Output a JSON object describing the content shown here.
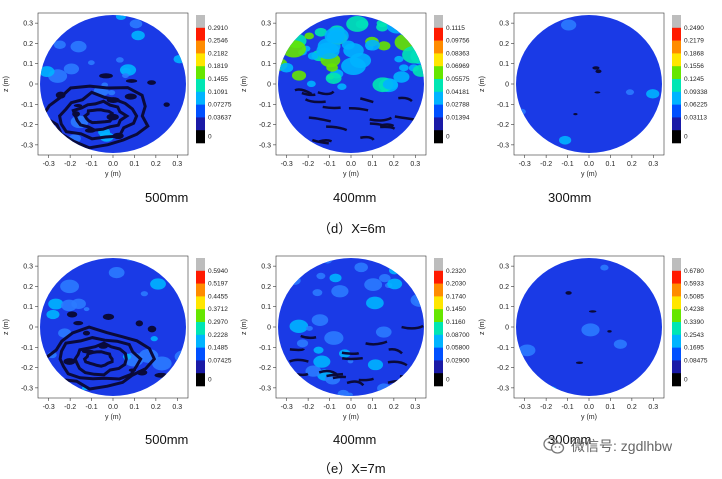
{
  "chart_data": [
    {
      "type": "heatmap",
      "label": "500mm",
      "xlabel": "y (m)",
      "ylabel": "z (m)",
      "xlim": [
        -0.35,
        0.35
      ],
      "ylim": [
        -0.35,
        0.35
      ],
      "xticks": [
        "-0.3",
        "-0.2",
        "-0.1",
        "0.0",
        "0.1",
        "0.2",
        "0.3"
      ],
      "yticks": [
        "0.3",
        "0.2",
        "0.1",
        "0",
        "-0.1",
        "-0.2",
        "-0.3"
      ],
      "colorbar": [
        "0.2910",
        "0.2546",
        "0.2182",
        "0.1819",
        "0.1455",
        "0.1091",
        "0.07275",
        "0.03637",
        "0"
      ],
      "style": "low-dark-contours"
    },
    {
      "type": "heatmap",
      "label": "400mm",
      "xlabel": "y (m)",
      "ylabel": "z (m)",
      "xlim": [
        -0.35,
        0.35
      ],
      "ylim": [
        -0.35,
        0.35
      ],
      "xticks": [
        "-0.3",
        "-0.2",
        "-0.1",
        "0.0",
        "0.1",
        "0.2",
        "0.3"
      ],
      "yticks": [
        "0.3",
        "0.2",
        "0.1",
        "0",
        "-0.1",
        "-0.2",
        "-0.3"
      ],
      "colorbar": [
        "0.1115",
        "0.09756",
        "0.08363",
        "0.06969",
        "0.05575",
        "0.04181",
        "0.02788",
        "0.01394",
        "0"
      ],
      "style": "speckled-top"
    },
    {
      "type": "heatmap",
      "label": "300mm",
      "xlabel": "y (m)",
      "ylabel": "z (m)",
      "xlim": [
        -0.35,
        0.35
      ],
      "ylim": [
        -0.35,
        0.35
      ],
      "xticks": [
        "-0.3",
        "-0.2",
        "-0.1",
        "0.0",
        "0.1",
        "0.2",
        "0.3"
      ],
      "yticks": [
        "0.3",
        "0.2",
        "0.1",
        "0",
        "-0.1",
        "-0.2",
        "-0.3"
      ],
      "colorbar": [
        "0.2490",
        "0.2179",
        "0.1868",
        "0.1556",
        "0.1245",
        "0.09338",
        "0.06225",
        "0.03113",
        "0"
      ],
      "style": "mostly-blue"
    },
    {
      "type": "heatmap",
      "label": "500mm",
      "xlabel": "y (m)",
      "ylabel": "z (m)",
      "xlim": [
        -0.35,
        0.35
      ],
      "ylim": [
        -0.35,
        0.35
      ],
      "xticks": [
        "-0.3",
        "-0.2",
        "-0.1",
        "0.0",
        "0.1",
        "0.2",
        "0.3"
      ],
      "yticks": [
        "0.3",
        "0.2",
        "0.1",
        "0",
        "-0.1",
        "-0.2",
        "-0.3"
      ],
      "colorbar": [
        "0.5940",
        "0.5197",
        "0.4455",
        "0.3712",
        "0.2970",
        "0.2228",
        "0.1485",
        "0.07425",
        "0"
      ],
      "style": "low-dark-contours"
    },
    {
      "type": "heatmap",
      "label": "400mm",
      "xlabel": "y (m)",
      "ylabel": "z (m)",
      "xlim": [
        -0.35,
        0.35
      ],
      "ylim": [
        -0.35,
        0.35
      ],
      "xticks": [
        "-0.3",
        "-0.2",
        "-0.1",
        "0.0",
        "0.1",
        "0.2",
        "0.3"
      ],
      "yticks": [
        "0.3",
        "0.2",
        "0.1",
        "0",
        "-0.1",
        "-0.2",
        "-0.3"
      ],
      "colorbar": [
        "0.2320",
        "0.2030",
        "0.1740",
        "0.1450",
        "0.1160",
        "0.08700",
        "0.05800",
        "0.02900",
        "0"
      ],
      "style": "mid-speckled"
    },
    {
      "type": "heatmap",
      "label": "300mm",
      "xlabel": "y (m)",
      "ylabel": "z (m)",
      "xlim": [
        -0.35,
        0.35
      ],
      "ylim": [
        -0.35,
        0.35
      ],
      "xticks": [
        "-0.3",
        "-0.2",
        "-0.1",
        "0.0",
        "0.1",
        "0.2",
        "0.3"
      ],
      "yticks": [
        "0.3",
        "0.2",
        "0.1",
        "0",
        "-0.1",
        "-0.2",
        "-0.3"
      ],
      "colorbar": [
        "0.6780",
        "0.5933",
        "0.5085",
        "0.4238",
        "0.3390",
        "0.2543",
        "0.1695",
        "0.08475",
        "0"
      ],
      "style": "mostly-blue"
    }
  ],
  "row_captions": [
    "（d）X=6m",
    "（e）X=7m"
  ],
  "colorbar_colors": [
    "#bdbdbd",
    "#ff1a00",
    "#ff8c00",
    "#ffe600",
    "#66e600",
    "#00e6b4",
    "#00b4ff",
    "#0050ff",
    "#1a1aa6",
    "#000000"
  ],
  "watermark": {
    "text": "微信号: zgdlhbw",
    "icon": "wechat-icon"
  }
}
